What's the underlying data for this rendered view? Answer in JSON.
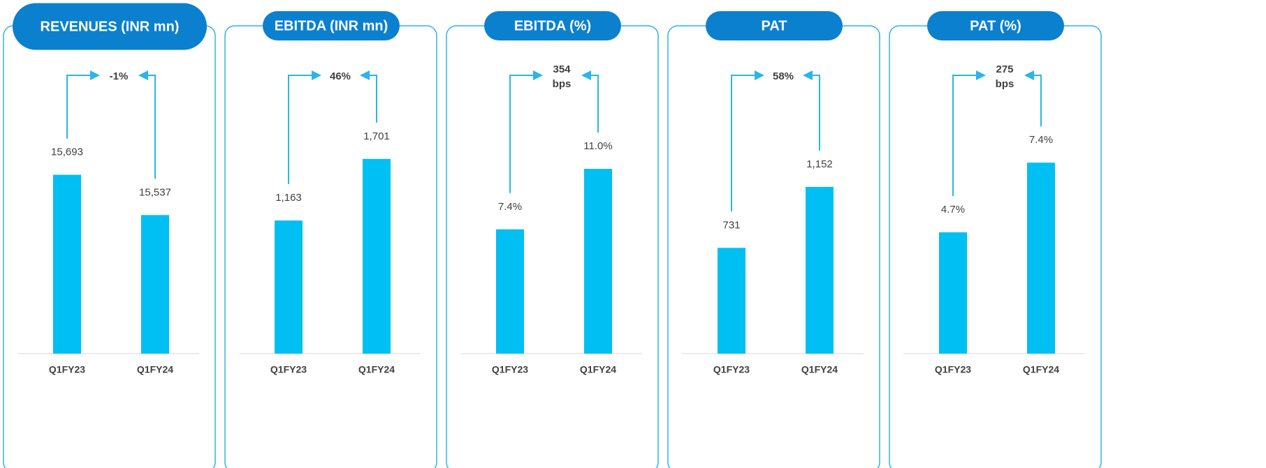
{
  "chart_data": [
    {
      "type": "bar",
      "title": "REVENUES (INR mn)",
      "annotation": "-1%",
      "categories": [
        "Q1FY23",
        "Q1FY24"
      ],
      "values": [
        15693,
        15537
      ],
      "value_labels": [
        "15,693",
        "15,537"
      ],
      "color": "#00bff3",
      "ylim": [
        15000,
        16100
      ]
    },
    {
      "type": "bar",
      "title": "EBITDA (INR mn)",
      "annotation": "46%",
      "categories": [
        "Q1FY23",
        "Q1FY24"
      ],
      "values": [
        1163,
        1701
      ],
      "value_labels": [
        "1,163",
        "1,701"
      ],
      "color": "#00bff3",
      "ylim": [
        0,
        2480
      ]
    },
    {
      "type": "bar",
      "title": "EBITDA (%)",
      "annotation": "354 bps",
      "categories": [
        "Q1FY23",
        "Q1FY24"
      ],
      "values": [
        7.4,
        11.0
      ],
      "value_labels": [
        "7.4%",
        "11.0%"
      ],
      "color": "#00bff3",
      "ylim": [
        0,
        16.9
      ]
    },
    {
      "type": "bar",
      "title": "PAT",
      "annotation": "58%",
      "categories": [
        "Q1FY23",
        "Q1FY24"
      ],
      "values": [
        731,
        1152
      ],
      "value_labels": [
        "731",
        "1,152"
      ],
      "color": "#00bff3",
      "ylim": [
        0,
        1962
      ]
    },
    {
      "type": "bar",
      "title": "PAT (%)",
      "annotation": "275 bps",
      "categories": [
        "Q1FY23",
        "Q1FY24"
      ],
      "values": [
        4.7,
        7.4
      ],
      "value_labels": [
        "4.7%",
        "7.4%"
      ],
      "color": "#00bff3",
      "ylim": [
        0,
        11
      ]
    }
  ]
}
